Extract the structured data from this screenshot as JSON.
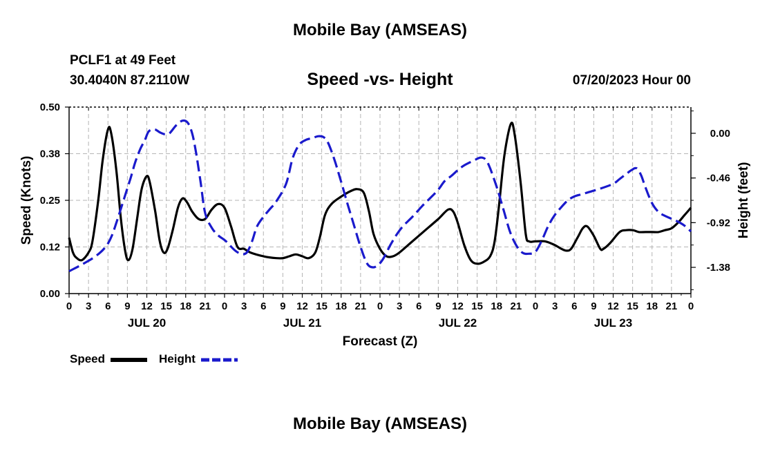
{
  "header": {
    "title": "Mobile Bay (AMSEAS)",
    "station_line": "PCLF1 at 49 Feet",
    "coords_line": "30.4040N  87.2110W",
    "chart_title": "Speed -vs- Height",
    "date_line": "07/20/2023 Hour 00"
  },
  "footer": {
    "title": "Mobile Bay (AMSEAS)"
  },
  "legend": {
    "speed_label": "Speed",
    "height_label": "Height"
  },
  "colors": {
    "speed": "#000000",
    "height": "#1a1acc",
    "grid": "#b4b4b4"
  },
  "chart_data": {
    "type": "line",
    "title": "Speed -vs- Height",
    "xlabel": "Forecast (Z)",
    "ylabel": "Speed (Knots)",
    "y2label": "Height (feet)",
    "x_range_hours": [
      0,
      96
    ],
    "ylim": [
      0,
      0.5
    ],
    "y2lim": [
      -1.65,
      0.27
    ],
    "y_ticks": [
      "0.00",
      "0.12",
      "0.25",
      "0.38",
      "0.50"
    ],
    "y_tick_values": [
      0,
      0.125,
      0.25,
      0.375,
      0.5
    ],
    "y2_ticks": [
      "0.00",
      "-0.46",
      "-0.92",
      "-1.38"
    ],
    "y2_tick_values": [
      0,
      -0.46,
      -0.92,
      -1.38
    ],
    "x_tick_labels": [
      "0",
      "3",
      "6",
      "9",
      "12",
      "15",
      "18",
      "21",
      "0",
      "3",
      "6",
      "9",
      "12",
      "15",
      "18",
      "21",
      "0",
      "3",
      "6",
      "9",
      "12",
      "15",
      "18",
      "21",
      "0",
      "3",
      "6",
      "9",
      "12",
      "15",
      "18",
      "21",
      "0"
    ],
    "day_labels": [
      {
        "hour": 12,
        "label": "JUL 20"
      },
      {
        "hour": 36,
        "label": "JUL 21"
      },
      {
        "hour": 60,
        "label": "JUL 22"
      },
      {
        "hour": 84,
        "label": "JUL 23"
      }
    ],
    "series": [
      {
        "name": "Speed",
        "axis": "left",
        "style": "solid",
        "points": [
          [
            0,
            0.15
          ],
          [
            0.6,
            0.11
          ],
          [
            1.2,
            0.095
          ],
          [
            2,
            0.09
          ],
          [
            3,
            0.11
          ],
          [
            3.6,
            0.14
          ],
          [
            4.5,
            0.25
          ],
          [
            5.2,
            0.36
          ],
          [
            6,
            0.44
          ],
          [
            6.5,
            0.43
          ],
          [
            7.3,
            0.33
          ],
          [
            8,
            0.2
          ],
          [
            8.7,
            0.11
          ],
          [
            9.2,
            0.09
          ],
          [
            9.8,
            0.12
          ],
          [
            10.5,
            0.2
          ],
          [
            11.2,
            0.28
          ],
          [
            12,
            0.315
          ],
          [
            12.5,
            0.295
          ],
          [
            13.3,
            0.22
          ],
          [
            14,
            0.14
          ],
          [
            14.6,
            0.11
          ],
          [
            15.2,
            0.12
          ],
          [
            16,
            0.17
          ],
          [
            16.8,
            0.23
          ],
          [
            17.5,
            0.255
          ],
          [
            18.2,
            0.245
          ],
          [
            19,
            0.22
          ],
          [
            20,
            0.2
          ],
          [
            21,
            0.2
          ],
          [
            22,
            0.225
          ],
          [
            23,
            0.24
          ],
          [
            24,
            0.23
          ],
          [
            25,
            0.18
          ],
          [
            26,
            0.125
          ],
          [
            27,
            0.12
          ],
          [
            28,
            0.11
          ],
          [
            30,
            0.1
          ],
          [
            32,
            0.095
          ],
          [
            33,
            0.095
          ],
          [
            34,
            0.1
          ],
          [
            35,
            0.105
          ],
          [
            36,
            0.1
          ],
          [
            37,
            0.095
          ],
          [
            38,
            0.11
          ],
          [
            38.7,
            0.15
          ],
          [
            39.5,
            0.21
          ],
          [
            40.5,
            0.24
          ],
          [
            42,
            0.26
          ],
          [
            43.5,
            0.275
          ],
          [
            44.5,
            0.28
          ],
          [
            45.5,
            0.27
          ],
          [
            46.3,
            0.22
          ],
          [
            47,
            0.16
          ],
          [
            48,
            0.12
          ],
          [
            49,
            0.1
          ],
          [
            50,
            0.1
          ],
          [
            51,
            0.11
          ],
          [
            53,
            0.14
          ],
          [
            55,
            0.17
          ],
          [
            57,
            0.2
          ],
          [
            58.5,
            0.225
          ],
          [
            59.3,
            0.22
          ],
          [
            60,
            0.19
          ],
          [
            61,
            0.13
          ],
          [
            62,
            0.09
          ],
          [
            63,
            0.08
          ],
          [
            64,
            0.085
          ],
          [
            65,
            0.1
          ],
          [
            65.7,
            0.14
          ],
          [
            66.4,
            0.24
          ],
          [
            67.2,
            0.37
          ],
          [
            68.2,
            0.455
          ],
          [
            68.8,
            0.425
          ],
          [
            69.7,
            0.3
          ],
          [
            70.5,
            0.16
          ],
          [
            71,
            0.14
          ],
          [
            72,
            0.14
          ],
          [
            73.5,
            0.14
          ],
          [
            75,
            0.13
          ],
          [
            76,
            0.12
          ],
          [
            76.8,
            0.115
          ],
          [
            77.5,
            0.12
          ],
          [
            78.5,
            0.15
          ],
          [
            79.3,
            0.175
          ],
          [
            80,
            0.18
          ],
          [
            81,
            0.155
          ],
          [
            82,
            0.12
          ],
          [
            82.5,
            0.12
          ],
          [
            83.5,
            0.135
          ],
          [
            85,
            0.165
          ],
          [
            86,
            0.17
          ],
          [
            87,
            0.17
          ],
          [
            88,
            0.165
          ],
          [
            89,
            0.165
          ],
          [
            90,
            0.165
          ],
          [
            91,
            0.165
          ],
          [
            92,
            0.17
          ],
          [
            93,
            0.175
          ],
          [
            94,
            0.19
          ],
          [
            95,
            0.21
          ],
          [
            96,
            0.23
          ]
        ]
      },
      {
        "name": "Height",
        "axis": "right",
        "style": "dashed",
        "points": [
          [
            0,
            -1.42
          ],
          [
            2,
            -1.35
          ],
          [
            4,
            -1.27
          ],
          [
            5.5,
            -1.18
          ],
          [
            6.5,
            -1.07
          ],
          [
            7.5,
            -0.88
          ],
          [
            8.5,
            -0.67
          ],
          [
            9.5,
            -0.46
          ],
          [
            10.2,
            -0.3
          ],
          [
            11,
            -0.16
          ],
          [
            11.7,
            -0.07
          ],
          [
            12.3,
            0.02
          ],
          [
            13.2,
            0.04
          ],
          [
            14,
            0.01
          ],
          [
            14.8,
            -0.01
          ],
          [
            15.5,
            0.0
          ],
          [
            16.5,
            0.08
          ],
          [
            17.5,
            0.13
          ],
          [
            18.3,
            0.11
          ],
          [
            19,
            0.0
          ],
          [
            19.6,
            -0.2
          ],
          [
            20.3,
            -0.5
          ],
          [
            21,
            -0.82
          ],
          [
            22,
            -0.97
          ],
          [
            23,
            -1.05
          ],
          [
            24.2,
            -1.11
          ],
          [
            25.5,
            -1.2
          ],
          [
            26.5,
            -1.24
          ],
          [
            27.4,
            -1.23
          ],
          [
            28.2,
            -1.12
          ],
          [
            29,
            -0.96
          ],
          [
            30,
            -0.86
          ],
          [
            31,
            -0.78
          ],
          [
            32,
            -0.7
          ],
          [
            33.5,
            -0.52
          ],
          [
            34.5,
            -0.26
          ],
          [
            35.5,
            -0.12
          ],
          [
            36.5,
            -0.07
          ],
          [
            37.5,
            -0.05
          ],
          [
            38.5,
            -0.03
          ],
          [
            39.3,
            -0.04
          ],
          [
            40,
            -0.1
          ],
          [
            41,
            -0.28
          ],
          [
            42,
            -0.5
          ],
          [
            43,
            -0.73
          ],
          [
            44,
            -0.95
          ],
          [
            45,
            -1.17
          ],
          [
            46,
            -1.34
          ],
          [
            46.9,
            -1.38
          ],
          [
            47.8,
            -1.35
          ],
          [
            48.6,
            -1.28
          ],
          [
            49.6,
            -1.15
          ],
          [
            50.5,
            -1.05
          ],
          [
            51.5,
            -0.96
          ],
          [
            53,
            -0.86
          ],
          [
            54.5,
            -0.75
          ],
          [
            56,
            -0.65
          ],
          [
            57,
            -0.58
          ],
          [
            58,
            -0.49
          ],
          [
            59,
            -0.44
          ],
          [
            60,
            -0.38
          ],
          [
            61,
            -0.33
          ],
          [
            62.5,
            -0.28
          ],
          [
            63.5,
            -0.25
          ],
          [
            64.3,
            -0.27
          ],
          [
            65,
            -0.36
          ],
          [
            66,
            -0.55
          ],
          [
            67,
            -0.77
          ],
          [
            68,
            -1.0
          ],
          [
            69,
            -1.15
          ],
          [
            70,
            -1.23
          ],
          [
            71,
            -1.24
          ],
          [
            72,
            -1.22
          ],
          [
            73,
            -1.1
          ],
          [
            74,
            -0.95
          ],
          [
            75,
            -0.84
          ],
          [
            76,
            -0.76
          ],
          [
            77,
            -0.69
          ],
          [
            78,
            -0.65
          ],
          [
            79,
            -0.63
          ],
          [
            80,
            -0.61
          ],
          [
            82,
            -0.57
          ],
          [
            84,
            -0.52
          ],
          [
            85,
            -0.47
          ],
          [
            86,
            -0.42
          ],
          [
            86.8,
            -0.38
          ],
          [
            87.6,
            -0.36
          ],
          [
            88.3,
            -0.43
          ],
          [
            89,
            -0.56
          ],
          [
            90,
            -0.72
          ],
          [
            91,
            -0.81
          ],
          [
            92,
            -0.85
          ],
          [
            93,
            -0.88
          ],
          [
            94,
            -0.91
          ],
          [
            95,
            -0.95
          ],
          [
            96,
            -1.01
          ]
        ]
      }
    ]
  }
}
